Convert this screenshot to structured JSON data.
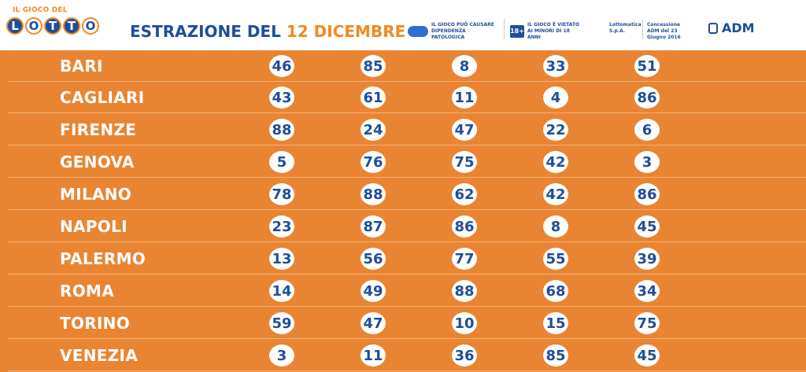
{
  "header": {
    "logo_small": "IL GIOCO DEL",
    "logo_letters": [
      "L",
      "O",
      "T",
      "T",
      "O"
    ],
    "title_prefix": "ESTRAZIONE DEL",
    "title_date": "12 DICEMBRE",
    "notice_dependence": "IL GIOCO PUÒ CAUSARE DIPENDENZA PATOLOGICA",
    "age_badge": "18+",
    "notice_minors": "IL GIOCO È VIETATO AI MINORI DI 18 ANNI",
    "operator": "Lottomatica S.p.A.",
    "concession": "Concessione ADM del 23 Giugno 2016",
    "adm": "ADM"
  },
  "draws": [
    {
      "city": "BARI",
      "numbers": [
        46,
        85,
        8,
        33,
        51
      ]
    },
    {
      "city": "CAGLIARI",
      "numbers": [
        43,
        61,
        11,
        4,
        86
      ]
    },
    {
      "city": "FIRENZE",
      "numbers": [
        88,
        24,
        47,
        22,
        6
      ]
    },
    {
      "city": "GENOVA",
      "numbers": [
        5,
        76,
        75,
        42,
        3
      ]
    },
    {
      "city": "MILANO",
      "numbers": [
        78,
        88,
        62,
        42,
        86
      ]
    },
    {
      "city": "NAPOLI",
      "numbers": [
        23,
        87,
        86,
        8,
        45
      ]
    },
    {
      "city": "PALERMO",
      "numbers": [
        13,
        56,
        77,
        55,
        39
      ]
    },
    {
      "city": "ROMA",
      "numbers": [
        14,
        49,
        88,
        68,
        34
      ]
    },
    {
      "city": "TORINO",
      "numbers": [
        59,
        47,
        10,
        15,
        75
      ]
    },
    {
      "city": "VENEZIA",
      "numbers": [
        3,
        11,
        36,
        85,
        45
      ]
    }
  ],
  "colors": {
    "orange": "#e98532",
    "blue": "#1e4e9b",
    "accent": "#f08a24"
  }
}
